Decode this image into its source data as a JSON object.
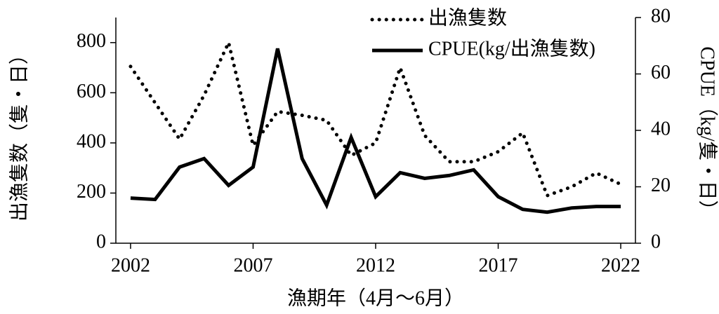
{
  "chart_data": {
    "type": "line",
    "x": [
      2002,
      2003,
      2004,
      2005,
      2006,
      2007,
      2008,
      2009,
      2010,
      2011,
      2012,
      2013,
      2014,
      2015,
      2016,
      2017,
      2018,
      2019,
      2020,
      2021,
      2022
    ],
    "series": [
      {
        "name": "出漁隻数",
        "color": "#000000",
        "style": "dotted",
        "axis": "y",
        "values": [
          705,
          560,
          415,
          590,
          800,
          390,
          525,
          510,
          490,
          350,
          400,
          700,
          430,
          325,
          325,
          365,
          440,
          190,
          225,
          280,
          235
        ]
      },
      {
        "name": "CPUE(kg/出漁隻数)",
        "color": "#000000",
        "style": "solid",
        "axis": "y2",
        "values": [
          16,
          15.5,
          27,
          30,
          20.5,
          27,
          69,
          30,
          13.5,
          37.5,
          16.5,
          25,
          23,
          24,
          26,
          16.5,
          12,
          11,
          12.5,
          13,
          13
        ]
      }
    ],
    "xlim": [
      2001.4,
      2022.6
    ],
    "xticks": [
      2002,
      2007,
      2012,
      2017,
      2022
    ],
    "ylim": [
      0,
      900
    ],
    "yticks": [
      0,
      200,
      400,
      600,
      800
    ],
    "y2lim": [
      0,
      80
    ],
    "y2ticks": [
      0,
      20,
      40,
      60,
      80
    ],
    "xlabel": "漁期年（4月～6月）",
    "ylabel": "出漁隻数（隻・日）",
    "y2label": "CPUE（kg/隻・日）",
    "legend": "top-right"
  }
}
